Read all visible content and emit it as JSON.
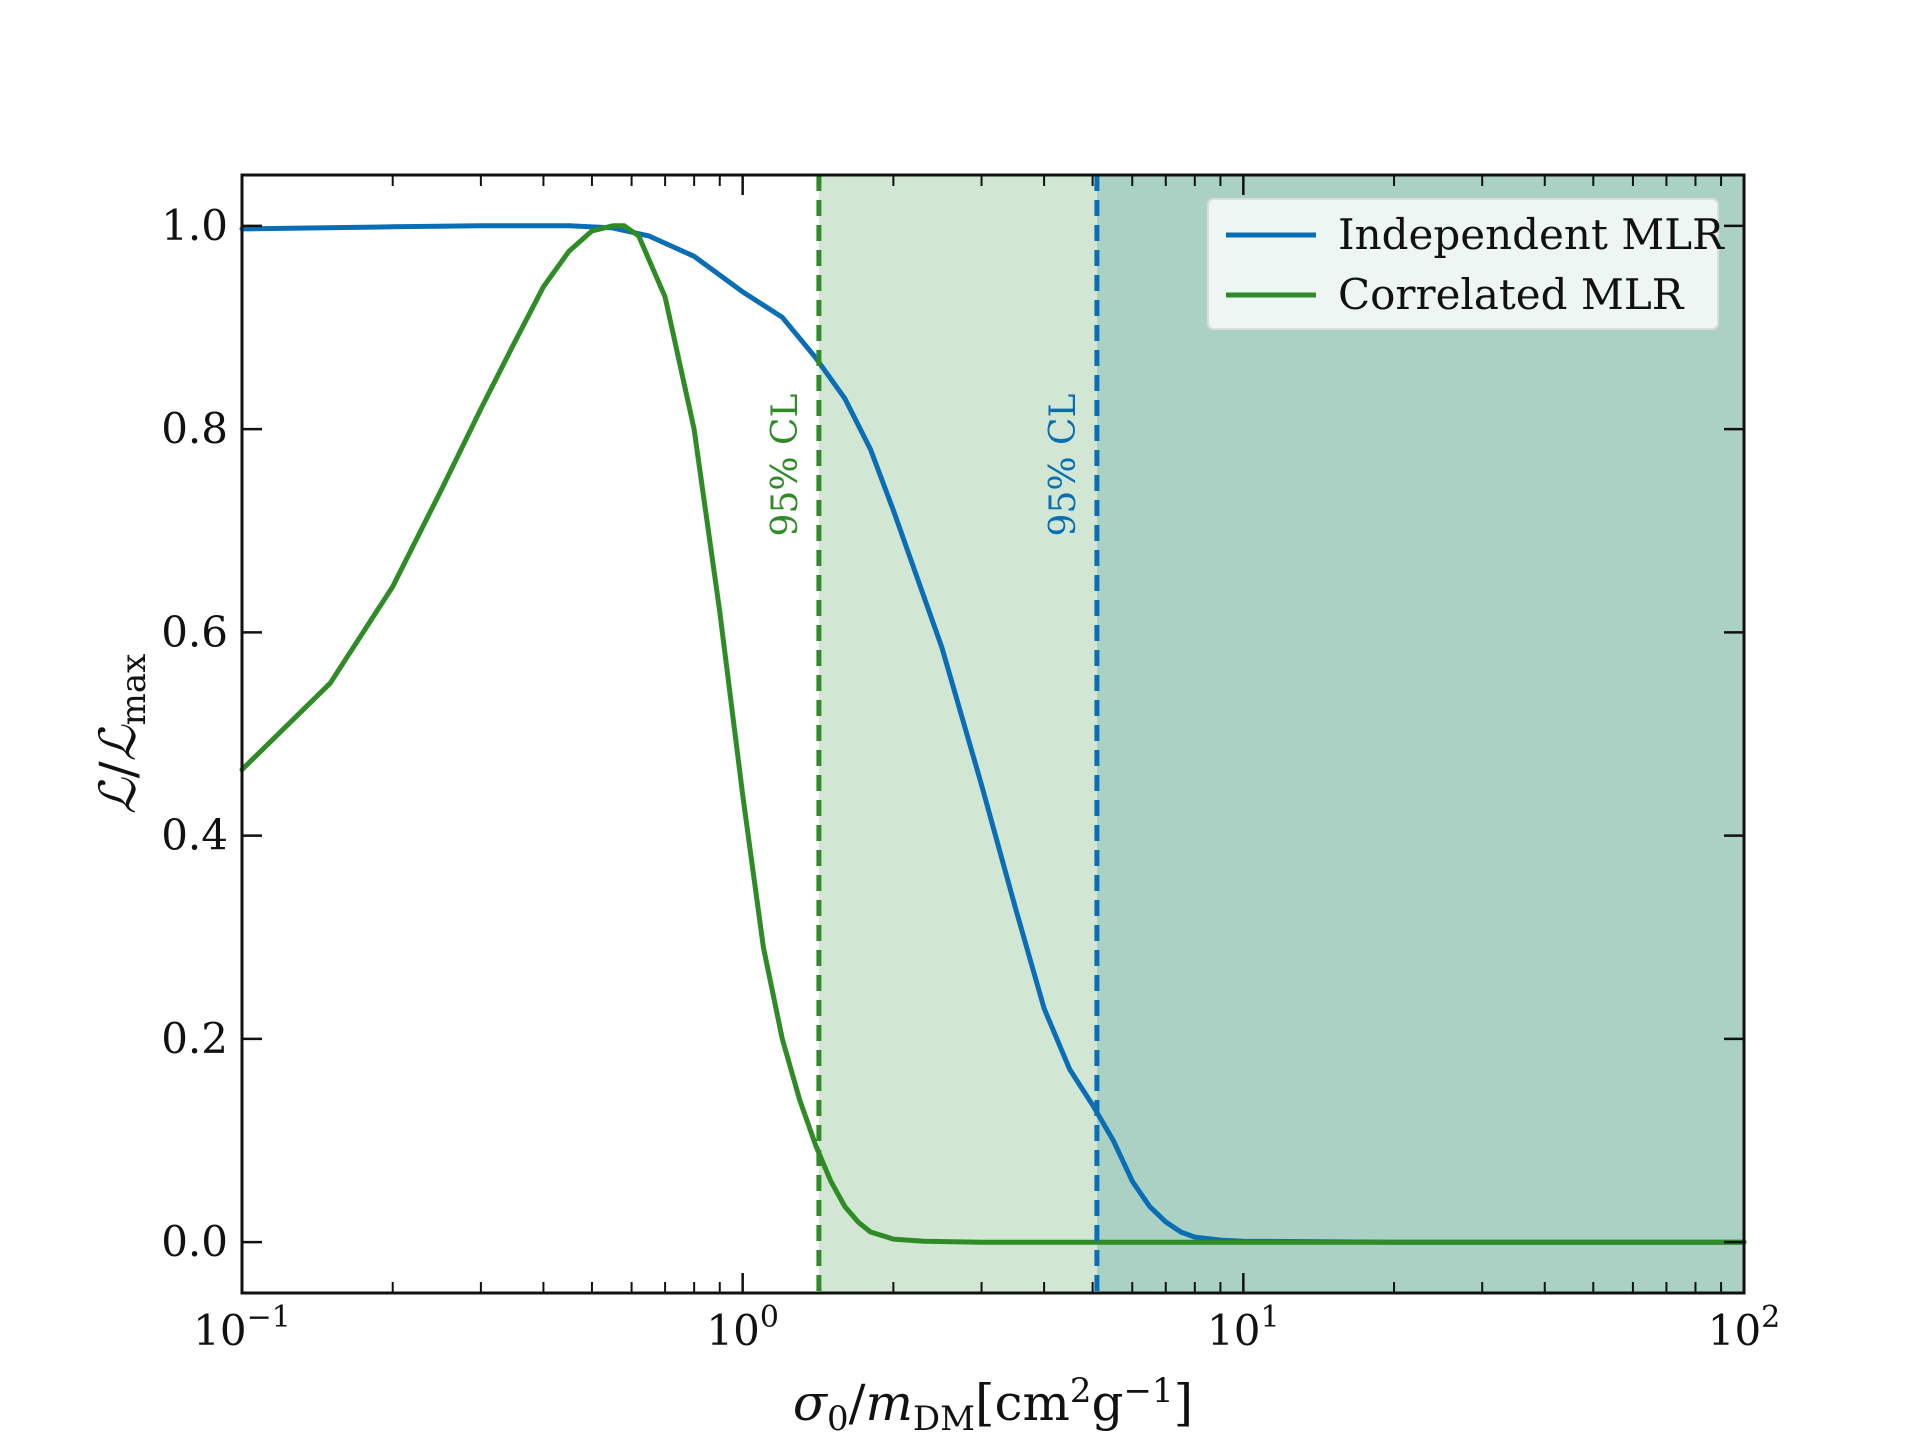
{
  "chart_data": {
    "type": "line",
    "title": "",
    "xscale": "log",
    "xlim": [
      0.1,
      100
    ],
    "ylim": [
      -0.05,
      1.05
    ],
    "grid": false,
    "xlabel": {
      "sym1": "σ",
      "sub1": "0",
      "slash": "/",
      "sym2": "m",
      "sub2": "DM",
      "unit1": "[cm",
      "sup1": "2",
      "unit2": "g",
      "sup2": "−1",
      "unit3": "]"
    },
    "ylabel": {
      "sym1": "ℒ",
      "slash": "/",
      "sym2": "ℒ",
      "sub2": "max"
    },
    "x_ticks": [
      {
        "value": 0.1,
        "base": "10",
        "exp": "−1"
      },
      {
        "value": 1,
        "base": "10",
        "exp": "0"
      },
      {
        "value": 10,
        "base": "10",
        "exp": "1"
      },
      {
        "value": 100,
        "base": "10",
        "exp": "2"
      }
    ],
    "y_ticks": [
      {
        "value": 0.0,
        "label": "0.0"
      },
      {
        "value": 0.2,
        "label": "0.2"
      },
      {
        "value": 0.4,
        "label": "0.4"
      },
      {
        "value": 0.6,
        "label": "0.6"
      },
      {
        "value": 0.8,
        "label": "0.8"
      },
      {
        "value": 1.0,
        "label": "1.0"
      }
    ],
    "legend": {
      "location": "top-right",
      "entries": [
        {
          "label": "Independent MLR",
          "color": "#0a6eb4"
        },
        {
          "label": "Correlated MLR",
          "color": "#2e8b25"
        }
      ]
    },
    "series": [
      {
        "name": "Independent MLR",
        "color": "#0a6eb4",
        "x": [
          0.1,
          0.2,
          0.3,
          0.45,
          0.55,
          0.65,
          0.8,
          1.0,
          1.2,
          1.4,
          1.6,
          1.8,
          2.0,
          2.5,
          3.0,
          3.5,
          4.0,
          4.5,
          5.0,
          5.5,
          6.0,
          6.5,
          7.0,
          7.5,
          8.0,
          9.0,
          10.0,
          20.0,
          100.0
        ],
        "y": [
          0.997,
          0.999,
          1.0,
          1.0,
          0.998,
          0.99,
          0.97,
          0.935,
          0.91,
          0.87,
          0.83,
          0.78,
          0.72,
          0.585,
          0.45,
          0.33,
          0.23,
          0.17,
          0.135,
          0.1,
          0.06,
          0.035,
          0.02,
          0.01,
          0.005,
          0.002,
          0.001,
          0.0,
          0.0
        ]
      },
      {
        "name": "Correlated MLR",
        "color": "#2e8b25",
        "x": [
          0.1,
          0.15,
          0.2,
          0.25,
          0.3,
          0.35,
          0.4,
          0.45,
          0.5,
          0.55,
          0.58,
          0.62,
          0.7,
          0.8,
          0.9,
          1.0,
          1.1,
          1.2,
          1.3,
          1.4,
          1.5,
          1.6,
          1.7,
          1.8,
          2.0,
          2.3,
          3.0,
          10.0,
          100.0
        ],
        "y": [
          0.465,
          0.55,
          0.645,
          0.74,
          0.82,
          0.885,
          0.94,
          0.975,
          0.995,
          1.0,
          1.0,
          0.99,
          0.93,
          0.8,
          0.62,
          0.44,
          0.29,
          0.2,
          0.14,
          0.095,
          0.06,
          0.035,
          0.02,
          0.01,
          0.003,
          0.001,
          0.0,
          0.0,
          0.0
        ]
      }
    ],
    "confidence_limits": [
      {
        "x": 1.42,
        "label": "95% CL",
        "color": "#2e8b25",
        "shade": "#d2e7d3",
        "series": "Correlated MLR"
      },
      {
        "x": 5.1,
        "label": "95% CL",
        "color": "#0a6eb4",
        "shade": "#abd1c5",
        "series": "Independent MLR"
      }
    ]
  }
}
